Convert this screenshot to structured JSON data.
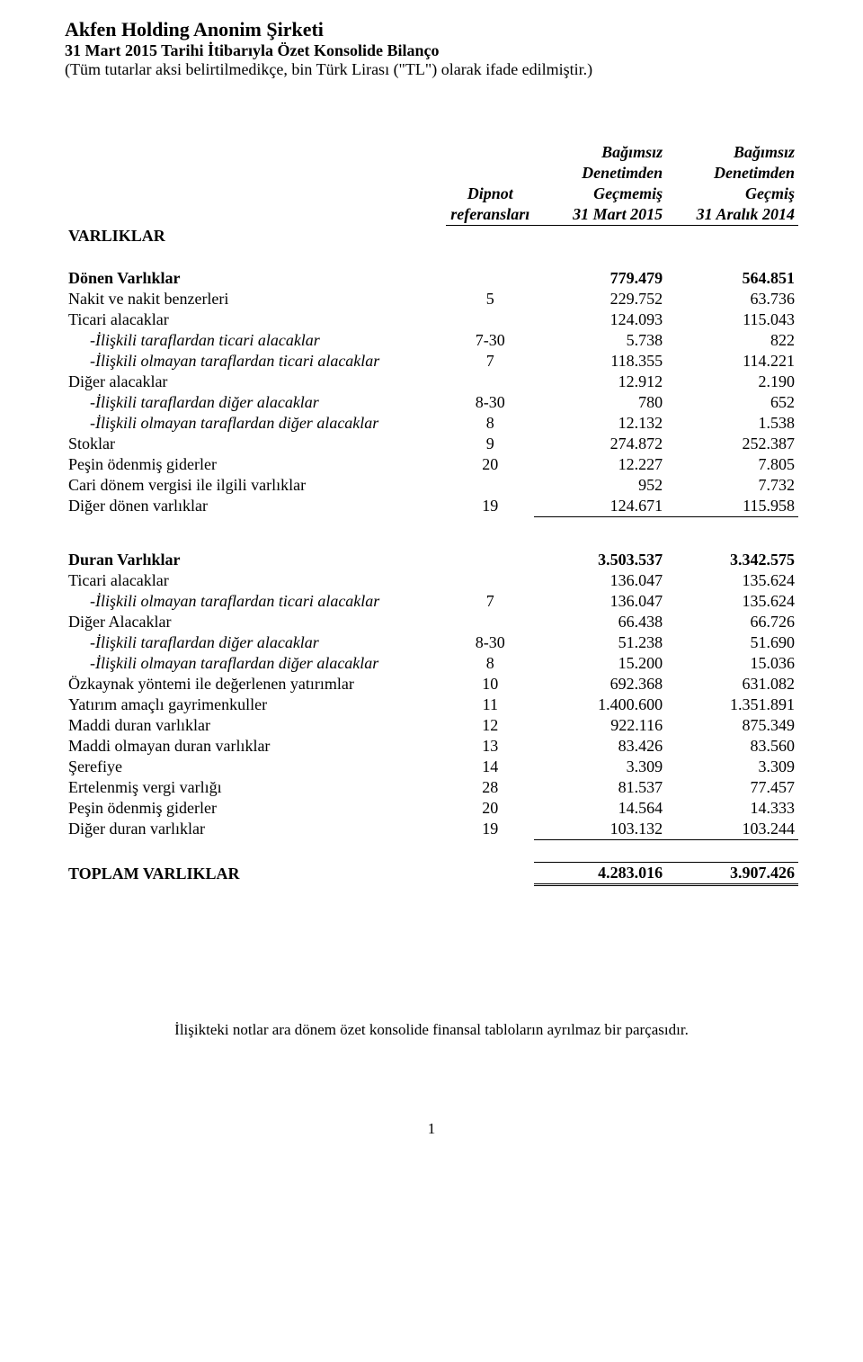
{
  "header": {
    "company": "Akfen Holding Anonim Şirketi",
    "report_title": "31 Mart 2015 Tarihi İtibarıyla Özet Konsolide Bilanço",
    "currency_note": "(Tüm tutarlar aksi belirtilmedikçe,  bin Türk Lirası (\"TL\") olarak ifade edilmiştir.)"
  },
  "columns": {
    "ref_l1": "Dipnot",
    "ref_l2": "referansları",
    "c1_l1": "Bağımsız",
    "c1_l2": "Denetimden",
    "c1_l3": "Geçmemiş",
    "c1_l4": "31 Mart 2015",
    "c2_l1": "Bağımsız",
    "c2_l2": "Denetimden",
    "c2_l3": "Geçmiş",
    "c2_l4": "31 Aralık 2014"
  },
  "sections": {
    "varliklar": "VARLIKLAR",
    "donen": {
      "title": "Dönen Varlıklar",
      "v1": "779.479",
      "v2": "564.851",
      "rows": [
        {
          "label": "Nakit ve nakit benzerleri",
          "ref": "5",
          "v1": "229.752",
          "v2": "63.736",
          "indent": 0,
          "italic": false
        },
        {
          "label": "Ticari alacaklar",
          "ref": "",
          "v1": "124.093",
          "v2": "115.043",
          "indent": 0,
          "italic": false
        },
        {
          "label": "-İlişkili taraflardan ticari alacaklar",
          "ref": "7-30",
          "v1": "5.738",
          "v2": "822",
          "indent": 1,
          "italic": true
        },
        {
          "label": "-İlişkili olmayan taraflardan ticari alacaklar",
          "ref": "7",
          "v1": "118.355",
          "v2": "114.221",
          "indent": 1,
          "italic": true
        },
        {
          "label": "Diğer alacaklar",
          "ref": "",
          "v1": "12.912",
          "v2": "2.190",
          "indent": 0,
          "italic": false
        },
        {
          "label": "-İlişkili taraflardan diğer alacaklar",
          "ref": "8-30",
          "v1": "780",
          "v2": "652",
          "indent": 1,
          "italic": true
        },
        {
          "label": "-İlişkili olmayan taraflardan diğer alacaklar",
          "ref": "8",
          "v1": "12.132",
          "v2": "1.538",
          "indent": 1,
          "italic": true
        },
        {
          "label": "Stoklar",
          "ref": "9",
          "v1": "274.872",
          "v2": "252.387",
          "indent": 0,
          "italic": false
        },
        {
          "label": "Peşin ödenmiş giderler",
          "ref": "20",
          "v1": "12.227",
          "v2": "7.805",
          "indent": 0,
          "italic": false
        },
        {
          "label": "Cari dönem vergisi ile ilgili varlıklar",
          "ref": "",
          "v1": "952",
          "v2": "7.732",
          "indent": 0,
          "italic": false
        },
        {
          "label": "Diğer dönen varlıklar",
          "ref": "19",
          "v1": "124.671",
          "v2": "115.958",
          "indent": 0,
          "italic": false
        }
      ]
    },
    "duran": {
      "title": "Duran Varlıklar",
      "v1": "3.503.537",
      "v2": "3.342.575",
      "rows": [
        {
          "label": "Ticari alacaklar",
          "ref": "",
          "v1": "136.047",
          "v2": "135.624",
          "indent": 0,
          "italic": false
        },
        {
          "label": "-İlişkili olmayan taraflardan ticari alacaklar",
          "ref": "7",
          "v1": "136.047",
          "v2": "135.624",
          "indent": 1,
          "italic": true
        },
        {
          "label": "Diğer Alacaklar",
          "ref": "",
          "v1": "66.438",
          "v2": "66.726",
          "indent": 0,
          "italic": false
        },
        {
          "label": "-İlişkili taraflardan diğer alacaklar",
          "ref": "8-30",
          "v1": "51.238",
          "v2": "51.690",
          "indent": 1,
          "italic": true
        },
        {
          "label": "-İlişkili olmayan taraflardan diğer alacaklar",
          "ref": "8",
          "v1": "15.200",
          "v2": "15.036",
          "indent": 1,
          "italic": true
        },
        {
          "label": "Özkaynak yöntemi ile değerlenen yatırımlar",
          "ref": "10",
          "v1": "692.368",
          "v2": "631.082",
          "indent": 0,
          "italic": false
        },
        {
          "label": "Yatırım amaçlı gayrimenkuller",
          "ref": "11",
          "v1": "1.400.600",
          "v2": "1.351.891",
          "indent": 0,
          "italic": false
        },
        {
          "label": "Maddi duran varlıklar",
          "ref": "12",
          "v1": "922.116",
          "v2": "875.349",
          "indent": 0,
          "italic": false
        },
        {
          "label": "Maddi olmayan duran varlıklar",
          "ref": "13",
          "v1": "83.426",
          "v2": "83.560",
          "indent": 0,
          "italic": false
        },
        {
          "label": "Şerefiye",
          "ref": "14",
          "v1": "3.309",
          "v2": "3.309",
          "indent": 0,
          "italic": false
        },
        {
          "label": "Ertelenmiş vergi varlığı",
          "ref": "28",
          "v1": "81.537",
          "v2": "77.457",
          "indent": 0,
          "italic": false
        },
        {
          "label": "Peşin ödenmiş giderler",
          "ref": "20",
          "v1": "14.564",
          "v2": "14.333",
          "indent": 0,
          "italic": false
        },
        {
          "label": "Diğer duran varlıklar",
          "ref": "19",
          "v1": "103.132",
          "v2": "103.244",
          "indent": 0,
          "italic": false
        }
      ]
    },
    "total": {
      "label": "TOPLAM VARLIKLAR",
      "v1": "4.283.016",
      "v2": "3.907.426"
    }
  },
  "footnote": "İlişikteki notlar ara dönem özet konsolide finansal tabloların ayrılmaz bir parçasıdır.",
  "page_number": "1"
}
